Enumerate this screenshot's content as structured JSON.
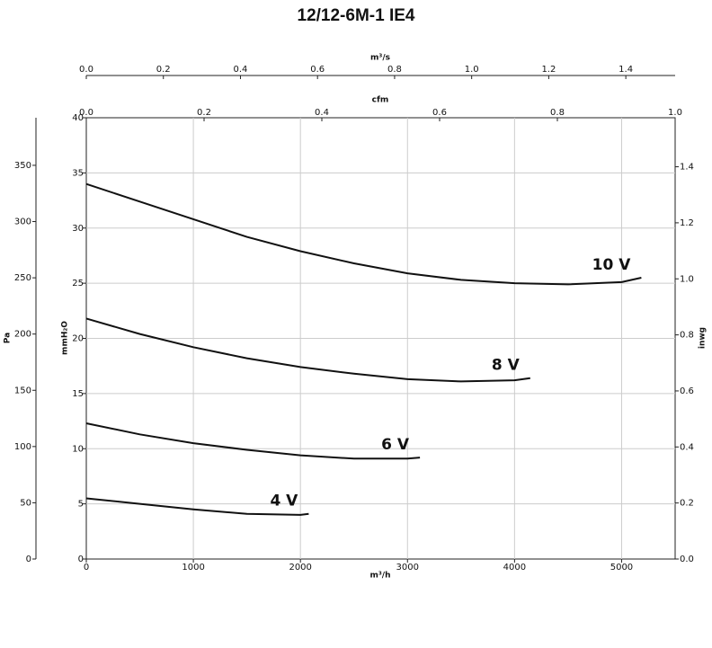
{
  "chart_data": {
    "type": "line",
    "title": "12/12-6M-1 IE4",
    "xlabel": "m³/h",
    "ylabel": "mmH₂O",
    "xlim": [
      0,
      5500
    ],
    "xticks": [
      0,
      1000,
      2000,
      3000,
      4000,
      5000
    ],
    "ylim": [
      0,
      40
    ],
    "yticks": [
      0,
      5,
      10,
      15,
      20,
      25,
      30,
      35,
      40
    ],
    "grid": true,
    "pa_axis": {
      "label": "Pa",
      "lim": [
        0,
        392.3
      ],
      "ticks": [
        0,
        50,
        100,
        150,
        200,
        250,
        300,
        350
      ]
    },
    "inwg_axis": {
      "label": "inwg",
      "lim": [
        0,
        1.575
      ],
      "ticks": [
        {
          "value": 0,
          "label": "0.0"
        },
        {
          "value": 0.2,
          "label": "0.2"
        },
        {
          "value": 0.4,
          "label": "0.4"
        },
        {
          "value": 0.6,
          "label": "0.6"
        },
        {
          "value": 0.8,
          "label": "0.8"
        },
        {
          "value": 1,
          "label": "1.0"
        },
        {
          "value": 1.2,
          "label": "1.2"
        },
        {
          "value": 1.4,
          "label": "1.4"
        }
      ]
    },
    "m3s_axis": {
      "label": "m³/s",
      "lim": [
        0,
        1.528
      ],
      "ticks": [
        {
          "value": 0,
          "label": "0.0"
        },
        {
          "value": 0.2,
          "label": "0.2"
        },
        {
          "value": 0.4,
          "label": "0.4"
        },
        {
          "value": 0.6,
          "label": "0.6"
        },
        {
          "value": 0.8,
          "label": "0.8"
        },
        {
          "value": 1,
          "label": "1.0"
        },
        {
          "value": 1.2,
          "label": "1.2"
        },
        {
          "value": 1.4,
          "label": "1.4"
        }
      ]
    },
    "cfm_axis": {
      "label": "cfm",
      "lim": [
        0,
        1
      ],
      "ticks": [
        {
          "value": 0,
          "label": "0.0"
        },
        {
          "value": 0.2,
          "label": "0.2"
        },
        {
          "value": 0.4,
          "label": "0.4"
        },
        {
          "value": 0.6,
          "label": "0.6"
        },
        {
          "value": 0.8,
          "label": "0.8"
        },
        {
          "value": 1,
          "label": "1.0"
        }
      ]
    },
    "series": [
      {
        "name": "10 V",
        "color": "#111111",
        "x": [
          0,
          500,
          1000,
          1500,
          2000,
          2500,
          3000,
          3500,
          4000,
          4500,
          5000,
          5184
        ],
        "values": [
          34.0,
          32.4,
          30.8,
          29.2,
          27.9,
          26.8,
          25.9,
          25.3,
          25.0,
          24.9,
          25.1,
          25.5
        ]
      },
      {
        "name": "8 V",
        "color": "#111111",
        "x": [
          0,
          500,
          1000,
          1500,
          2000,
          2500,
          3000,
          3500,
          4000,
          4146
        ],
        "values": [
          21.8,
          20.4,
          19.2,
          18.2,
          17.4,
          16.8,
          16.3,
          16.1,
          16.2,
          16.4
        ]
      },
      {
        "name": "6 V",
        "color": "#111111",
        "x": [
          0,
          500,
          1000,
          1500,
          2000,
          2500,
          3000,
          3116
        ],
        "values": [
          12.3,
          11.3,
          10.5,
          9.9,
          9.4,
          9.1,
          9.1,
          9.2
        ]
      },
      {
        "name": "4 V",
        "color": "#111111",
        "x": [
          0,
          500,
          1000,
          1500,
          2000,
          2077
        ],
        "values": [
          5.5,
          5.0,
          4.5,
          4.1,
          4.0,
          4.1
        ]
      }
    ]
  }
}
